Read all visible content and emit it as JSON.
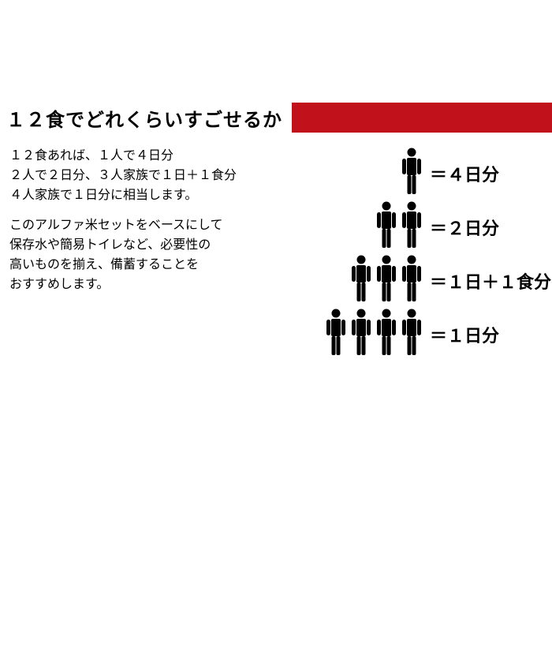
{
  "header": {
    "title": "１２食でどれくらいすごせるか"
  },
  "paragraphs": {
    "p1": "１２食あれば、１人で４日分\n２人で２日分、３人家族で１日＋１食分\n４人家族で１日分に相当します。",
    "p2": "このアルファ米セットをベースにして\n保存水や簡易トイレなど、必要性の\n高いものを揃え、備蓄することを\nおすすめします。"
  },
  "pyramid": {
    "rows": [
      {
        "count": 1,
        "label": "＝４日分"
      },
      {
        "count": 2,
        "label": "＝２日分"
      },
      {
        "count": 3,
        "label": "＝１日＋１食分"
      },
      {
        "count": 4,
        "label": "＝１日分"
      }
    ]
  },
  "style": {
    "band_color": "#c1111b",
    "person_color": "#000000",
    "background": "#ffffff",
    "title_fontsize": 24,
    "body_fontsize": 16,
    "label_fontsize": 22
  }
}
